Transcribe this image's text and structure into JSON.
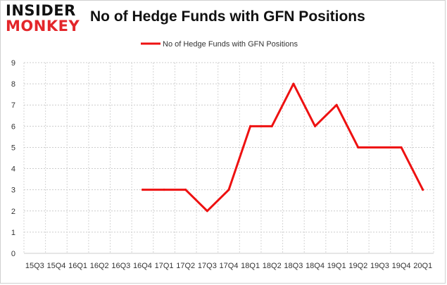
{
  "logo": {
    "line1": "INSIDER",
    "line2": "MONKEY",
    "line1_color": "#111111",
    "line2_color": "#e3262a"
  },
  "chart_data": {
    "type": "line",
    "title": "No of Hedge Funds with GFN Positions",
    "xlabel": "",
    "ylabel": "",
    "categories": [
      "15Q3",
      "15Q4",
      "16Q1",
      "16Q2",
      "16Q3",
      "16Q4",
      "17Q1",
      "17Q2",
      "17Q3",
      "17Q4",
      "18Q1",
      "18Q2",
      "18Q3",
      "18Q4",
      "19Q1",
      "19Q2",
      "19Q3",
      "19Q4",
      "20Q1"
    ],
    "series": [
      {
        "name": "No of Hedge Funds with GFN Positions",
        "color": "#ee1111",
        "values": [
          null,
          null,
          null,
          null,
          null,
          3,
          3,
          3,
          2,
          3,
          6,
          6,
          8,
          6,
          7,
          5,
          5,
          5,
          3
        ]
      }
    ],
    "ylim": [
      0,
      9
    ],
    "yticks": [
      0,
      1,
      2,
      3,
      4,
      5,
      6,
      7,
      8,
      9
    ],
    "grid": true,
    "legend": "top-center"
  }
}
